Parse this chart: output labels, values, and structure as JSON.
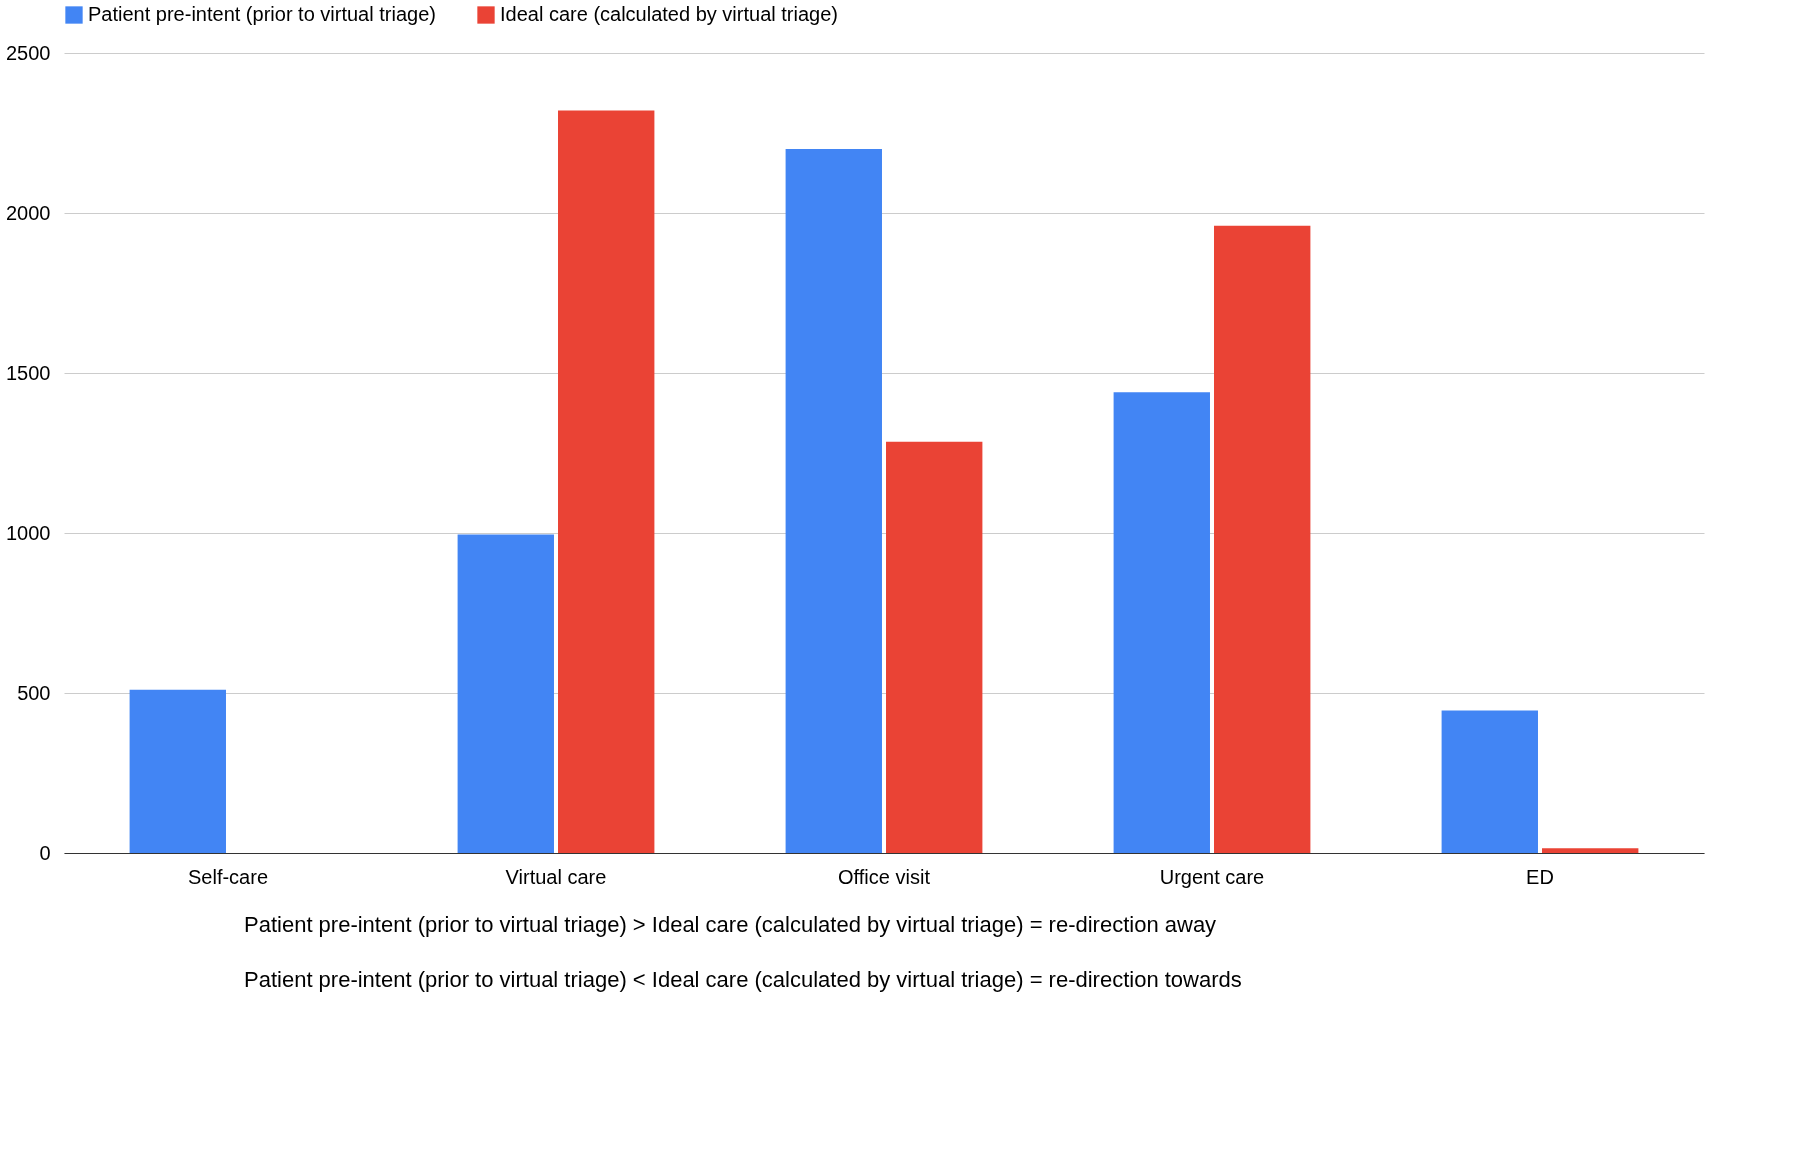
{
  "chart_data": {
    "type": "bar",
    "categories": [
      "Self-care",
      "Virtual care",
      "Office visit",
      "Urgent care",
      "ED"
    ],
    "series": [
      {
        "name": "Patient pre-intent (prior to virtual triage)",
        "color": "#4285f4",
        "values": [
          510,
          995,
          2200,
          1440,
          445
        ]
      },
      {
        "name": "Ideal care (calculated by virtual triage)",
        "color": "#ea4335",
        "values": [
          0,
          2320,
          1285,
          1960,
          15
        ]
      }
    ],
    "ylim": [
      0,
      2500
    ],
    "yticks": [
      0,
      500,
      1000,
      1500,
      2000,
      2500
    ],
    "grid": "y",
    "legend": "top",
    "annotations": [
      "Patient pre-intent (prior to virtual triage) > Ideal care (calculated by virtual triage) = re-direction away",
      "Patient pre-intent (prior to virtual triage) < Ideal care (calculated by virtual triage) = re-direction towards"
    ]
  }
}
